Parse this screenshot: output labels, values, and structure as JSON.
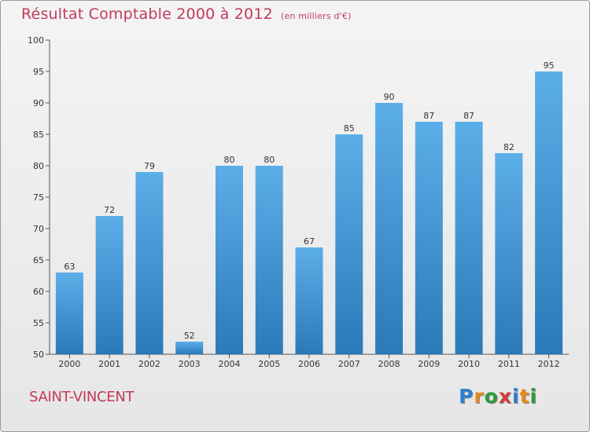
{
  "header": {
    "title": "Résultat Comptable 2000 à 2012",
    "subtitle": "(en milliers d'€)"
  },
  "footer": {
    "commune": "SAINT-VINCENT",
    "logo": "Proxiti",
    "logo_letters": [
      "P",
      "r",
      "o",
      "x",
      "i",
      "t",
      "i"
    ],
    "logo_colors": [
      "#2e7fd0",
      "#e38a1a",
      "#2e9a3a",
      "#d23c3c",
      "#2e7fd0",
      "#e38a1a",
      "#2e9a3a"
    ]
  },
  "colors": {
    "bar_top": "#5caee8",
    "bar_bottom": "#2a7ab9",
    "axis": "#555555",
    "grid": "#d0d0d0"
  },
  "chart_data": {
    "type": "bar",
    "title": "Résultat Comptable 2000 à 2012",
    "subtitle": "(en milliers d'€)",
    "xlabel": "",
    "ylabel": "",
    "categories": [
      "2000",
      "2001",
      "2002",
      "2003",
      "2004",
      "2005",
      "2006",
      "2007",
      "2008",
      "2009",
      "2010",
      "2011",
      "2012"
    ],
    "values": [
      63,
      72,
      79,
      52,
      80,
      80,
      67,
      85,
      90,
      87,
      87,
      82,
      95
    ],
    "ylim": [
      50,
      100
    ],
    "yticks": [
      50,
      55,
      60,
      65,
      70,
      75,
      80,
      85,
      90,
      95,
      100
    ],
    "grid": false
  }
}
